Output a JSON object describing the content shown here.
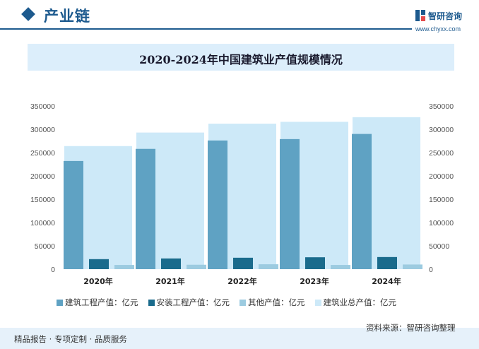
{
  "header": {
    "section_title": "产业链",
    "brand_name": "智研咨询",
    "brand_url": "www.chyxx.com"
  },
  "colors": {
    "primary": "#1d5a8e",
    "construction": "#5fa2c3",
    "installation": "#1a6b8c",
    "other": "#9ccbe0",
    "total": "#cde9f8"
  },
  "chart_data": {
    "type": "bar",
    "title": "2020-2024年中国建筑业产值规模情况",
    "categories": [
      "2020年",
      "2021年",
      "2022年",
      "2023年",
      "2024年"
    ],
    "series": [
      {
        "name": "建筑工程产值：亿元",
        "axis": "left",
        "values": [
          232000,
          258000,
          276000,
          279000,
          290000
        ]
      },
      {
        "name": "安装工程产值：亿元",
        "axis": "left",
        "values": [
          21500,
          23000,
          24500,
          25500,
          26000
        ]
      },
      {
        "name": "其他产值：亿元",
        "axis": "left",
        "values": [
          9000,
          9500,
          10500,
          9000,
          10000
        ]
      },
      {
        "name": "建筑业总产值：亿元",
        "axis": "right",
        "values": [
          264000,
          293000,
          312000,
          316000,
          326000
        ]
      }
    ],
    "y_ticks": [
      "350000",
      "300000",
      "250000",
      "200000",
      "150000",
      "100000",
      "50000",
      "0"
    ],
    "ylim": [
      0,
      350000
    ],
    "y2lim": [
      0,
      350000
    ],
    "grid": false,
    "legend": "bottom"
  },
  "footer": {
    "left": "精品报告 · 专项定制 · 品质服务",
    "source": "资料来源：智研咨询整理"
  }
}
